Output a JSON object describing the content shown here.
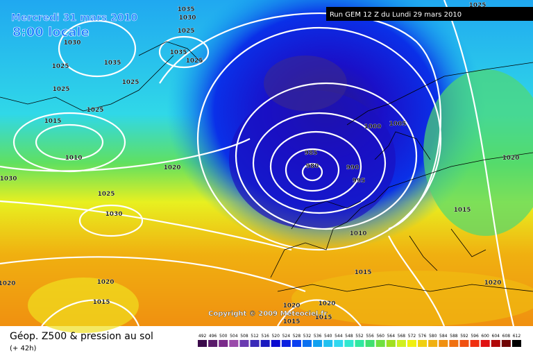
{
  "header": {
    "date": "Mercredi 31 mars 2010",
    "time": "8:00 locale",
    "run": "Run GEM 12 Z du Lundi 29 mars 2010"
  },
  "copyright": "Copyright © 2009 Meteociel.fr",
  "footer": {
    "title": "Géop. Z500 & pression au sol",
    "lead": "(+ 42h)"
  },
  "isobar_labels": [
    1035,
    1030,
    1025,
    1030,
    1035,
    1025,
    1025,
    1025,
    1025,
    1015,
    1010,
    1020,
    1030,
    1025,
    1030,
    1020,
    1020,
    1015,
    1025,
    1035,
    1000,
    1005,
    985,
    980,
    990,
    995,
    1010,
    1015,
    1020,
    1020,
    1015,
    1015,
    1015,
    1020,
    1020,
    1025
  ],
  "scale": {
    "labels": [
      492,
      496,
      500,
      504,
      508,
      512,
      516,
      520,
      524,
      528,
      532,
      536,
      540,
      544,
      548,
      552,
      556,
      560,
      564,
      568,
      572,
      576,
      580,
      584,
      588,
      592,
      596,
      600,
      604,
      608,
      612
    ],
    "colors": [
      "#3a0a4a",
      "#5a1a6a",
      "#7a2a8a",
      "#9a4aaa",
      "#6a3ab0",
      "#3a2ab8",
      "#1a1ac0",
      "#0a0ad0",
      "#0a20e0",
      "#0a40f0",
      "#0a70f0",
      "#10a0f0",
      "#20c0f0",
      "#30d8f0",
      "#30e8d0",
      "#30e8a0",
      "#40e070",
      "#70e040",
      "#a0e020",
      "#d0f020",
      "#f0f010",
      "#f0d010",
      "#f0b010",
      "#f09010",
      "#f07010",
      "#f05010",
      "#f03010",
      "#e01010",
      "#b00808",
      "#700404",
      "#000000"
    ]
  }
}
